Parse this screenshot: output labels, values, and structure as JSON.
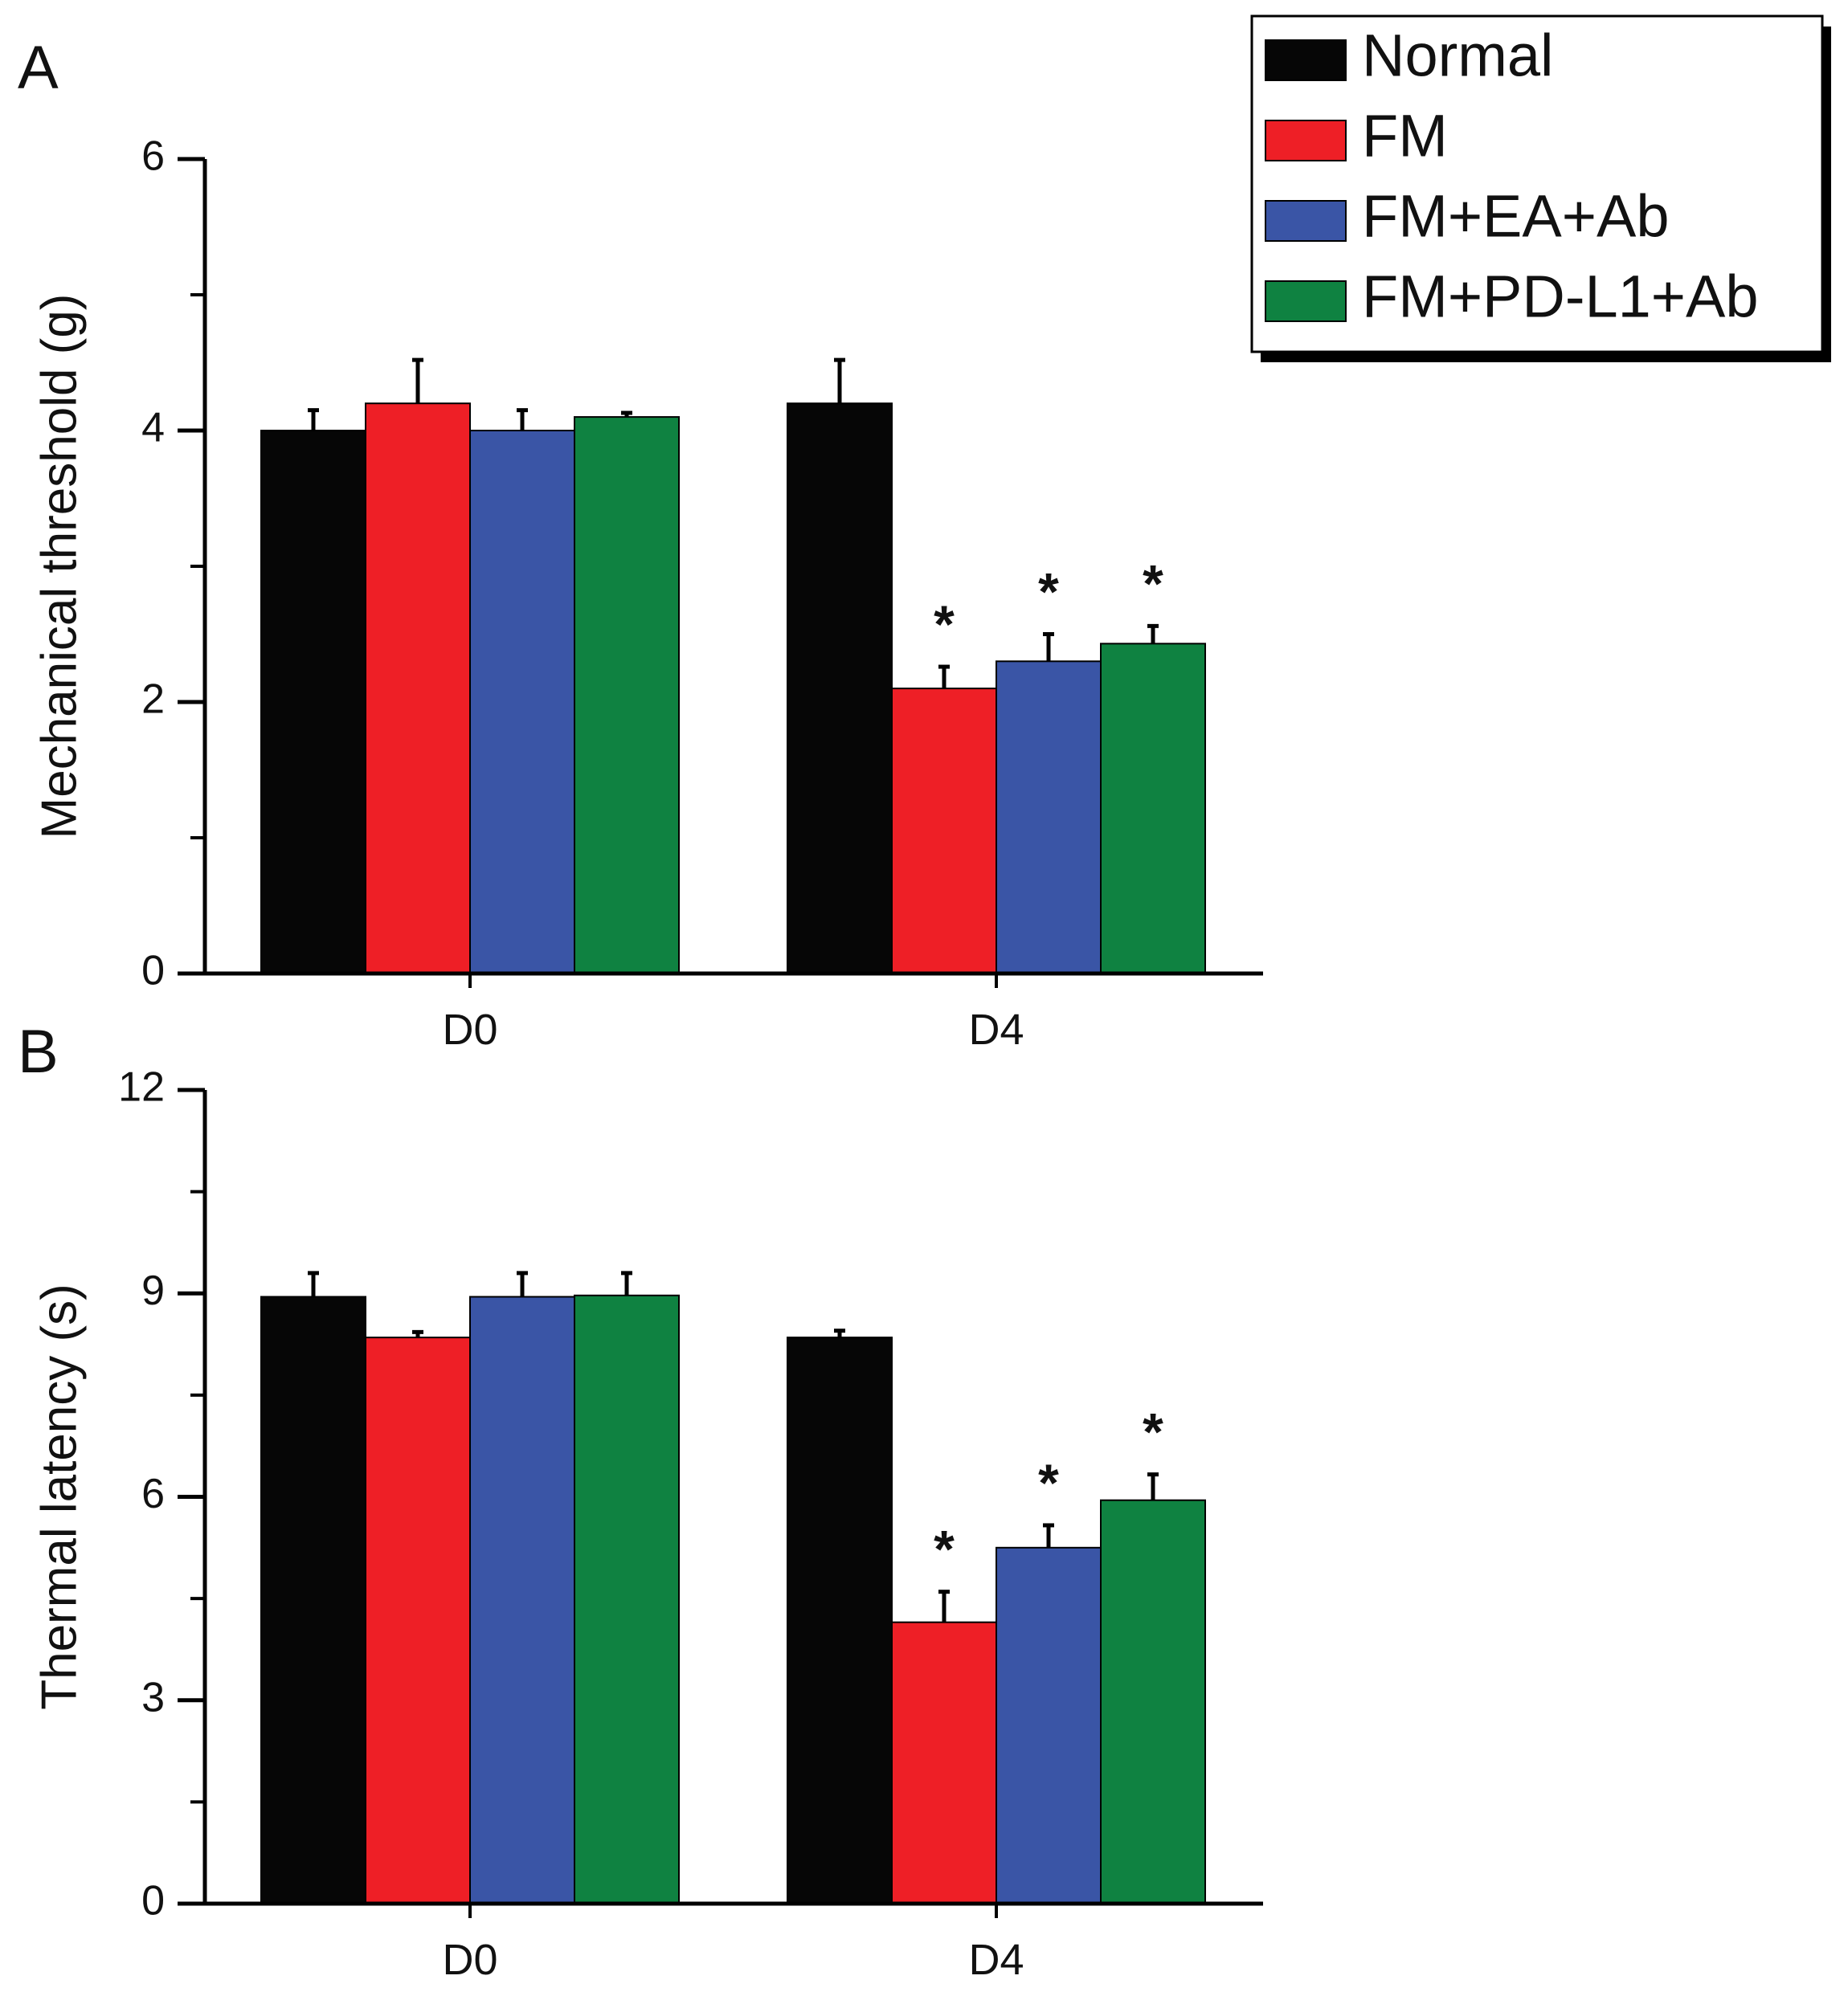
{
  "chart_data": [
    {
      "panel": "A",
      "type": "bar",
      "ylabel": "Mechanical threshold (g)",
      "xlabel": "",
      "ylim": [
        0,
        6
      ],
      "yticks": [
        0,
        2,
        4,
        6
      ],
      "ytick_labels": [
        "0",
        "2",
        "4",
        "6"
      ],
      "categories": [
        "D0",
        "D4"
      ],
      "series": [
        {
          "name": "Normal",
          "color": "#060606",
          "values": [
            4.0,
            4.2
          ],
          "errors": [
            0.15,
            0.32
          ],
          "sig": [
            "",
            ""
          ]
        },
        {
          "name": "FM",
          "color": "#ee1f26",
          "values": [
            4.2,
            2.1
          ],
          "errors": [
            0.32,
            0.16
          ],
          "sig": [
            "",
            "*"
          ]
        },
        {
          "name": "FM+EA+Ab",
          "color": "#3a55a6",
          "values": [
            4.0,
            2.3
          ],
          "errors": [
            0.15,
            0.2
          ],
          "sig": [
            "",
            "*"
          ]
        },
        {
          "name": "FM+PD-L1+Ab",
          "color": "#0f8241",
          "values": [
            4.1,
            2.43
          ],
          "errors": [
            0.03,
            0.13
          ],
          "sig": [
            "",
            "*"
          ]
        }
      ]
    },
    {
      "panel": "B",
      "type": "bar",
      "ylabel": "Thermal latency (s)",
      "xlabel": "",
      "ylim": [
        0,
        12
      ],
      "yticks": [
        0,
        3,
        6,
        9,
        12
      ],
      "ytick_labels": [
        "0",
        "3",
        "6",
        "9",
        "12"
      ],
      "categories": [
        "D0",
        "D4"
      ],
      "series": [
        {
          "name": "Normal",
          "color": "#060606",
          "values": [
            8.95,
            8.35
          ],
          "errors": [
            0.35,
            0.1
          ],
          "sig": [
            "",
            ""
          ]
        },
        {
          "name": "FM",
          "color": "#ee1f26",
          "values": [
            8.35,
            4.15
          ],
          "errors": [
            0.08,
            0.45
          ],
          "sig": [
            "",
            "*"
          ]
        },
        {
          "name": "FM+EA+Ab",
          "color": "#3a55a6",
          "values": [
            8.95,
            5.25
          ],
          "errors": [
            0.35,
            0.33
          ],
          "sig": [
            "",
            "*"
          ]
        },
        {
          "name": "FM+PD-L1+Ab",
          "color": "#0f8241",
          "values": [
            8.97,
            5.95
          ],
          "errors": [
            0.33,
            0.38
          ],
          "sig": [
            "",
            "*"
          ]
        }
      ]
    }
  ],
  "legend": {
    "placement": "top-right",
    "entries": [
      {
        "label": "Normal",
        "color": "#060606"
      },
      {
        "label": "FM",
        "color": "#ee1f26"
      },
      {
        "label": "FM+EA+Ab",
        "color": "#3a55a6"
      },
      {
        "label": "FM+PD-L1+Ab",
        "color": "#0f8241"
      }
    ]
  }
}
